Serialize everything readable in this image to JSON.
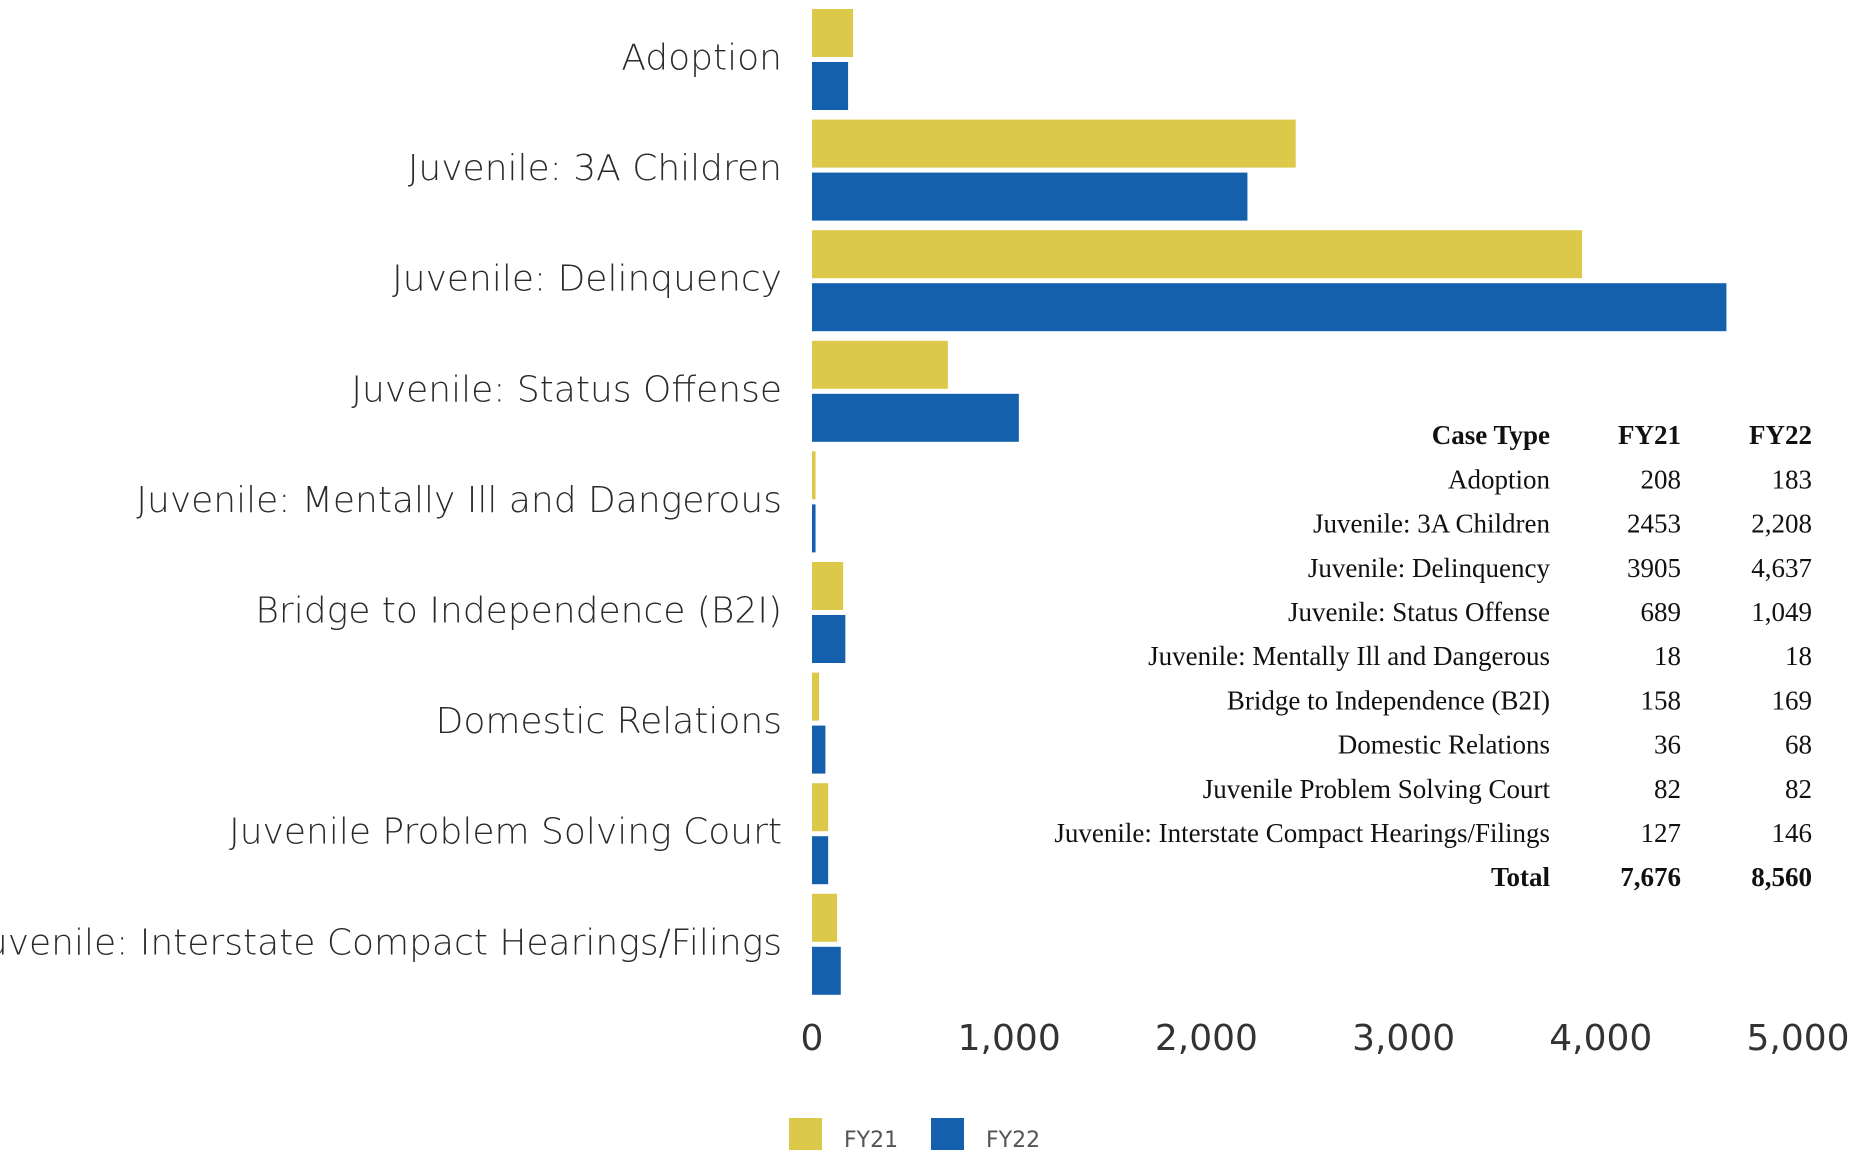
{
  "chart_data": {
    "type": "bar",
    "orientation": "horizontal",
    "categories": [
      "Adoption",
      "Juvenile: 3A Children",
      "Juvenile: Delinquency",
      "Juvenile: Status Offense",
      "Juvenile: Mentally Ill and Dangerous",
      "Bridge to Independence (B2I)",
      "Domestic Relations",
      "Juvenile Problem Solving Court",
      "Juvenile: Interstate Compact Hearings/Filings"
    ],
    "series": [
      {
        "name": "FY21",
        "color": "#dcc94a",
        "values": [
          208,
          2453,
          3905,
          689,
          18,
          158,
          36,
          82,
          127
        ]
      },
      {
        "name": "FY22",
        "color": "#1560ad",
        "values": [
          183,
          2208,
          4637,
          1049,
          18,
          169,
          68,
          82,
          146
        ]
      }
    ],
    "xlim": [
      0,
      5000
    ],
    "xticks": [
      0,
      {
        "value": 1000,
        "label": "1,000"
      },
      {
        "value": 2000,
        "label": "2,000"
      },
      {
        "value": 3000,
        "label": "3,000"
      },
      {
        "value": 4000,
        "label": "4,000"
      },
      {
        "value": 5000,
        "label": "5,000"
      }
    ],
    "grid": false,
    "legend": "bottom"
  },
  "table": {
    "header": [
      "Case Type",
      "FY21",
      "FY22"
    ],
    "rows": [
      [
        "Adoption",
        "208",
        "183"
      ],
      [
        "Juvenile: 3A Children",
        "2453",
        "2,208"
      ],
      [
        "Juvenile: Delinquency",
        "3905",
        "4,637"
      ],
      [
        "Juvenile: Status Offense",
        "689",
        "1,049"
      ],
      [
        "Juvenile: Mentally Ill and Dangerous",
        "18",
        "18"
      ],
      [
        "Bridge to Independence (B2I)",
        "158",
        "169"
      ],
      [
        "Domestic Relations",
        "36",
        "68"
      ],
      [
        "Juvenile Problem Solving Court",
        "82",
        "82"
      ],
      [
        "Juvenile: Interstate Compact Hearings/Filings",
        "127",
        "146"
      ]
    ],
    "total": [
      "Total",
      "7,676",
      "8,560"
    ]
  }
}
